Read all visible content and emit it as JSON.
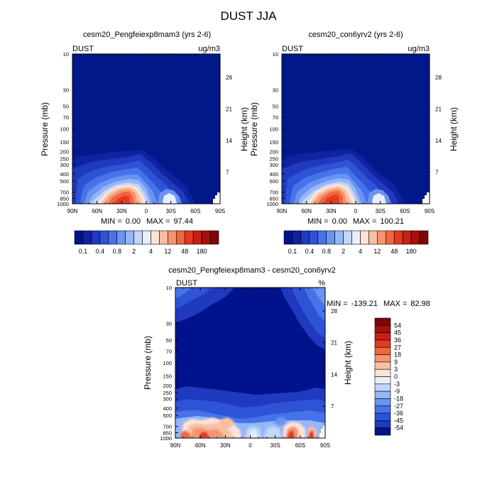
{
  "page": {
    "title": "DUST JJA",
    "left_panel_title": "cesm20_Pengfeiexp8mam3 (yrs 2-6)",
    "right_panel_title": "cesm20_con6yrv2 (yrs 2-6)",
    "diff_panel_title": "cesm20_Pengfeiexp8mam3 - cesm20_con6yrv2"
  },
  "colors": {
    "plot_background": "#00188a",
    "scale_blue": [
      "#00128c",
      "#0f22a0",
      "#1f39bf",
      "#2f53d7",
      "#4773ea",
      "#6b93f2",
      "#95b7f7",
      "#c2d6fb",
      "#e8eefc"
    ],
    "scale_red": [
      "#fde3d3",
      "#f9bfa3",
      "#f6946f",
      "#f0663d",
      "#e4391f",
      "#c81e14",
      "#a5110f",
      "#7d0707"
    ]
  },
  "chart_data": [
    {
      "type": "heatmap",
      "panel": "left",
      "variable_label": "DUST",
      "units_label": "ug/m3",
      "x": {
        "label": "",
        "range": [
          90,
          -90
        ],
        "tick_labels": [
          "90N",
          "60N",
          "30N",
          "0",
          "30S",
          "60S",
          "90S"
        ]
      },
      "y_left": {
        "label": "Pressure (mb)",
        "scale": "log",
        "range": [
          1000,
          10
        ],
        "tick_values": [
          10,
          30,
          50,
          70,
          100,
          150,
          200,
          250,
          300,
          400,
          500,
          700,
          850,
          1000
        ],
        "tick_labels": [
          "10",
          "30",
          "50",
          "70",
          "100",
          "150",
          "200",
          "250",
          "300",
          "400",
          "500",
          "700",
          "850",
          "1000"
        ]
      },
      "y_right": {
        "label": "Height (km)",
        "tick_labels": [
          "28",
          "21",
          "14",
          "7"
        ]
      },
      "stats": {
        "min_label": "MIN =",
        "min": "0.00",
        "max_label": "MAX =",
        "max": "97.44"
      },
      "colorbar": {
        "labels": [
          "0.1",
          "0.4",
          "0.8",
          "2",
          "4",
          "12",
          "48",
          "180"
        ]
      }
    },
    {
      "type": "heatmap",
      "panel": "right",
      "variable_label": "DUST",
      "units_label": "ug/m3",
      "x": {
        "label": "",
        "range": [
          90,
          -90
        ],
        "tick_labels": [
          "90N",
          "60N",
          "30N",
          "0",
          "30S",
          "60S",
          "90S"
        ]
      },
      "y_left": {
        "label": "Pressure (mb)",
        "scale": "log",
        "range": [
          1000,
          10
        ],
        "tick_values": [
          10,
          30,
          50,
          70,
          100,
          150,
          200,
          250,
          300,
          400,
          500,
          700,
          850,
          1000
        ],
        "tick_labels": [
          "10",
          "30",
          "50",
          "70",
          "100",
          "150",
          "200",
          "250",
          "300",
          "400",
          "500",
          "700",
          "850",
          "1000"
        ]
      },
      "y_right": {
        "label": "Height (km)",
        "tick_labels": [
          "28",
          "21",
          "14",
          "7"
        ]
      },
      "stats": {
        "min_label": "MIN =",
        "min": "0.00",
        "max_label": "MAX =",
        "max": "100.21"
      },
      "colorbar": {
        "labels": [
          "0.1",
          "0.4",
          "0.8",
          "2",
          "4",
          "12",
          "48",
          "180"
        ]
      }
    },
    {
      "type": "heatmap",
      "panel": "difference",
      "variable_label": "DUST",
      "units_label": "%",
      "x": {
        "label": "",
        "range": [
          90,
          -90
        ],
        "tick_labels": [
          "90N",
          "60N",
          "30N",
          "0",
          "30S",
          "60S",
          "90S"
        ]
      },
      "y_left": {
        "label": "Pressure (mb)",
        "scale": "log",
        "range": [
          1000,
          10
        ],
        "tick_values": [
          10,
          30,
          50,
          70,
          100,
          150,
          200,
          250,
          300,
          400,
          500,
          700,
          850,
          1000
        ],
        "tick_labels": [
          "10",
          "30",
          "50",
          "70",
          "100",
          "150",
          "200",
          "250",
          "300",
          "400",
          "500",
          "700",
          "850",
          "1000"
        ]
      },
      "y_right": {
        "label": "Height (km)",
        "tick_labels": [
          "28",
          "21",
          "14",
          "7"
        ]
      },
      "stats": {
        "min_label": "MIN =",
        "min": "-139.21",
        "max_label": "MAX =",
        "max": "82.98"
      },
      "colorbar": {
        "labels": [
          "54",
          "45",
          "36",
          "27",
          "18",
          "9",
          "3",
          "0",
          "-3",
          "-9",
          "-18",
          "-27",
          "-36",
          "-45",
          "-54"
        ]
      }
    }
  ]
}
